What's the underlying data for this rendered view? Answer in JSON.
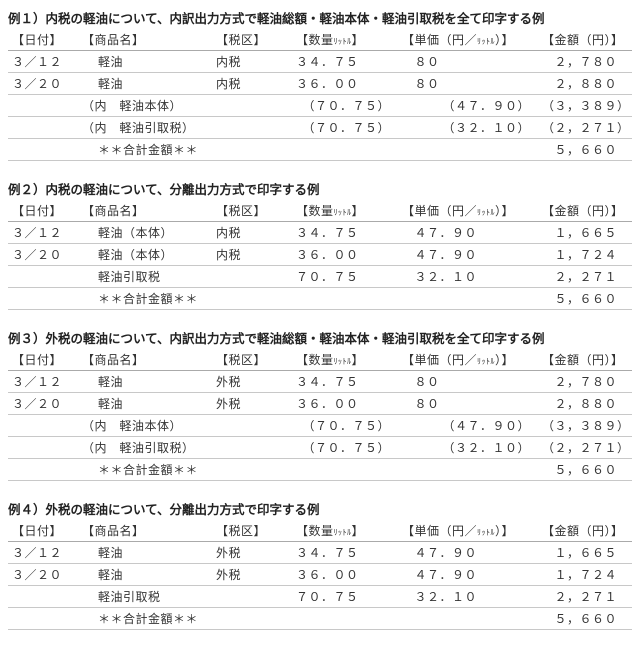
{
  "headers": {
    "date": "【日付】",
    "name": "【商品名】",
    "tax": "【税区】",
    "qty_a": "【数量",
    "qty_b": "】",
    "unit": "【単価（円／",
    "unit_b": "）】",
    "amt": "【金額（円）】",
    "qty_unit": "ﾘｯﾄﾙ"
  },
  "total_label": "＊＊合計金額＊＊",
  "examples": [
    {
      "title": "例１）内税の軽油について、内訳出力方式で軽油総額・軽油本体・軽油引取税を全て印字する例",
      "rows": [
        {
          "t": "d",
          "date": "３／１２",
          "name": "軽油",
          "tax": "内税",
          "qty": "３４．７５",
          "unit": "８０",
          "amt": "２，７８０"
        },
        {
          "t": "d",
          "date": "３／２０",
          "name": "軽油",
          "tax": "内税",
          "qty": "３６．００",
          "unit": "８０",
          "amt": "２，８８０"
        },
        {
          "t": "s",
          "name": "（内　軽油本体）",
          "qty": "（７０．７５）",
          "unit": "（４７．９０）",
          "amt": "（３，３８９）"
        },
        {
          "t": "s",
          "name": "（内　軽油引取税）",
          "qty": "（７０．７５）",
          "unit": "（３２．１０）",
          "amt": "（２，２７１）"
        },
        {
          "t": "tot",
          "amt": "５，６６０"
        }
      ]
    },
    {
      "title": "例２）内税の軽油について、分離出力方式で印字する例",
      "rows": [
        {
          "t": "d",
          "date": "３／１２",
          "name": "軽油（本体）",
          "tax": "内税",
          "qty": "３４．７５",
          "unit": "４７．９０",
          "amt": "１，６６５"
        },
        {
          "t": "d",
          "date": "３／２０",
          "name": "軽油（本体）",
          "tax": "内税",
          "qty": "３６．００",
          "unit": "４７．９０",
          "amt": "１，７２４"
        },
        {
          "t": "d",
          "date": "",
          "name": "軽油引取税",
          "tax": "",
          "qty": "７０．７５",
          "unit": "３２．１０",
          "amt": "２，２７１"
        },
        {
          "t": "tot",
          "amt": "５，６６０"
        }
      ]
    },
    {
      "title": "例３）外税の軽油について、内訳出力方式で軽油総額・軽油本体・軽油引取税を全て印字する例",
      "rows": [
        {
          "t": "d",
          "date": "３／１２",
          "name": "軽油",
          "tax": "外税",
          "qty": "３４．７５",
          "unit": "８０",
          "amt": "２，７８０"
        },
        {
          "t": "d",
          "date": "３／２０",
          "name": "軽油",
          "tax": "外税",
          "qty": "３６．００",
          "unit": "８０",
          "amt": "２，８８０"
        },
        {
          "t": "s",
          "name": "（内　軽油本体）",
          "qty": "（７０．７５）",
          "unit": "（４７．９０）",
          "amt": "（３，３８９）"
        },
        {
          "t": "s",
          "name": "（内　軽油引取税）",
          "qty": "（７０．７５）",
          "unit": "（３２．１０）",
          "amt": "（２，２７１）"
        },
        {
          "t": "tot",
          "amt": "５，６６０"
        }
      ]
    },
    {
      "title": "例４）外税の軽油について、分離出力方式で印字する例",
      "rows": [
        {
          "t": "d",
          "date": "３／１２",
          "name": "軽油",
          "tax": "外税",
          "qty": "３４．７５",
          "unit": "４７．９０",
          "amt": "１，６６５"
        },
        {
          "t": "d",
          "date": "３／２０",
          "name": "軽油",
          "tax": "外税",
          "qty": "３６．００",
          "unit": "４７．９０",
          "amt": "１，７２４"
        },
        {
          "t": "d",
          "date": "",
          "name": "軽油引取税",
          "tax": "",
          "qty": "７０．７５",
          "unit": "３２．１０",
          "amt": "２，２７１"
        },
        {
          "t": "tot",
          "amt": "５，６６０"
        }
      ]
    }
  ]
}
